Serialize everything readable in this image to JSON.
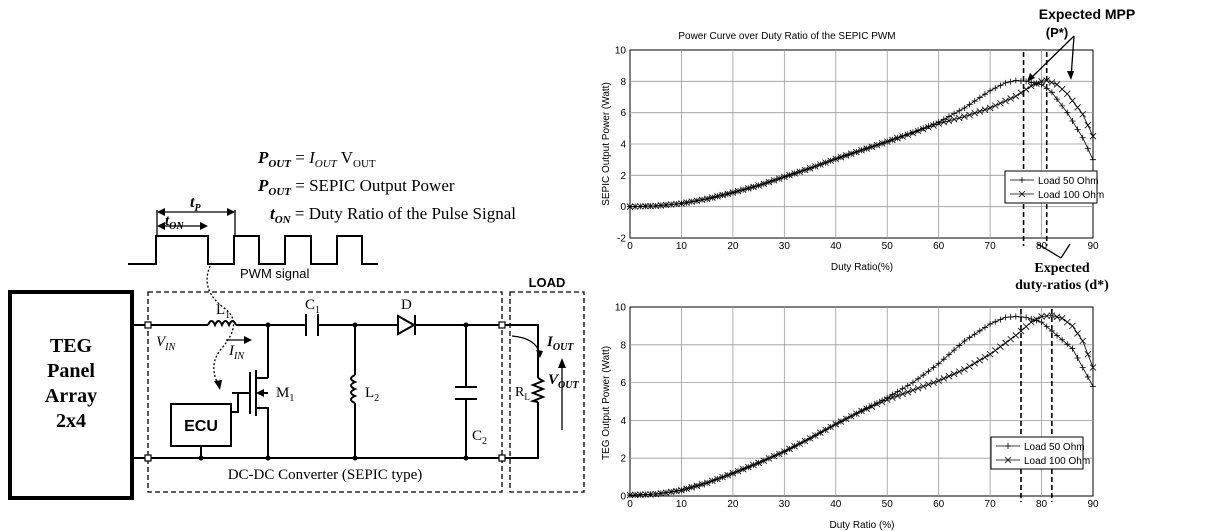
{
  "circuit": {
    "teg_label": [
      "TEG",
      "Panel",
      "Array",
      "2x4"
    ],
    "ecu_label": "ECU",
    "load_label": "LOAD",
    "converter_label": "DC-DC Converter (SEPIC type)",
    "pwm_label": "PWM signal",
    "tp_label": "t",
    "tp_sub": "P",
    "ton_label": "t",
    "ton_sub": "ON",
    "vin_label": "V",
    "vin_sub": "IN",
    "iin_label": "I",
    "iin_sub": "IN",
    "l1_label": "L",
    "l1_sub": "1",
    "c1_label": "C",
    "c1_sub": "1",
    "d_label": "D",
    "m1_label": "M",
    "m1_sub": "1",
    "l2_label": "L",
    "l2_sub": "2",
    "c2_label": "C",
    "c2_sub": "2",
    "rl_label": "R",
    "rl_sub": "L",
    "iout_label": "I",
    "iout_sub": "OUT",
    "vout_label": "V",
    "vout_sub": "OUT"
  },
  "equations": [
    {
      "sym": "P",
      "sub": "OUT",
      "rest_a": " = ",
      "i_sym": "I",
      "i_sub": "OUT",
      "rest_b": " V",
      "v_sub": "OUT"
    },
    {
      "sym": "P",
      "sub": "OUT",
      "rest": " = SEPIC Output Power"
    },
    {
      "sym": "t",
      "sub": "ON",
      "rest": " = Duty Ratio of the Pulse Signal"
    }
  ],
  "annotations": {
    "mpp_line1": "Expected MPP",
    "mpp_line2": "(P*)",
    "duty_line1": "Expected",
    "duty_line2": "duty-ratios (d*)"
  },
  "chart_data": [
    {
      "type": "line",
      "title": "Power Curve over Duty Ratio of the SEPIC PWM",
      "xlabel": "Duty Ratio(%)",
      "ylabel": "SEPIC Output Power (Watt)",
      "xlim": [
        0,
        90
      ],
      "ylim": [
        -2,
        10
      ],
      "xticks": [
        0,
        10,
        20,
        30,
        40,
        50,
        60,
        70,
        80,
        90
      ],
      "yticks": [
        -2,
        0,
        2,
        4,
        6,
        8,
        10
      ],
      "grid": true,
      "legend_position": "right",
      "series": [
        {
          "name": "Load 50 Ohm",
          "marker": "+",
          "x": [
            0,
            5,
            10,
            15,
            20,
            25,
            30,
            35,
            40,
            45,
            50,
            55,
            60,
            65,
            70,
            73,
            75,
            77,
            80,
            82,
            85,
            88,
            90
          ],
          "y": [
            0,
            0.05,
            0.2,
            0.5,
            0.9,
            1.35,
            1.9,
            2.45,
            3.05,
            3.6,
            4.15,
            4.75,
            5.4,
            6.3,
            7.4,
            7.9,
            8.05,
            8.0,
            7.8,
            7.3,
            6.0,
            4.4,
            3.0
          ]
        },
        {
          "name": "Load 100 Ohm",
          "marker": "x",
          "x": [
            0,
            5,
            10,
            15,
            20,
            25,
            30,
            35,
            40,
            45,
            50,
            55,
            60,
            65,
            70,
            75,
            78,
            80,
            81,
            83,
            85,
            88,
            90
          ],
          "y": [
            0,
            0.05,
            0.2,
            0.5,
            0.9,
            1.35,
            1.9,
            2.45,
            3.05,
            3.6,
            4.15,
            4.7,
            5.3,
            5.75,
            6.3,
            7.05,
            7.7,
            8.0,
            8.05,
            7.8,
            7.2,
            5.9,
            4.5
          ]
        }
      ],
      "markers": {
        "mpp_x": [
          76.5,
          81
        ]
      }
    },
    {
      "type": "line",
      "title": "",
      "xlabel": "Duty Ratio (%)",
      "ylabel": "TEG Output Power (Watt)",
      "xlim": [
        0,
        90
      ],
      "ylim": [
        0,
        10
      ],
      "xticks": [
        0,
        10,
        20,
        30,
        40,
        50,
        60,
        70,
        80,
        90
      ],
      "yticks": [
        0,
        2,
        4,
        6,
        8,
        10
      ],
      "grid": true,
      "legend_position": "right",
      "series": [
        {
          "name": "Load 50 Ohm",
          "marker": "+",
          "x": [
            0,
            5,
            10,
            15,
            20,
            25,
            30,
            35,
            40,
            45,
            50,
            55,
            60,
            65,
            70,
            73,
            75,
            77,
            80,
            83,
            86,
            90
          ],
          "y": [
            0.05,
            0.1,
            0.3,
            0.7,
            1.2,
            1.75,
            2.35,
            3.05,
            3.8,
            4.5,
            5.2,
            6.0,
            7.0,
            8.2,
            9.1,
            9.45,
            9.5,
            9.45,
            9.2,
            8.5,
            7.8,
            5.8
          ]
        },
        {
          "name": "Load 100 Ohm",
          "marker": "x",
          "x": [
            0,
            5,
            10,
            15,
            20,
            25,
            30,
            35,
            40,
            45,
            50,
            55,
            60,
            65,
            70,
            75,
            78,
            80,
            82,
            84,
            86,
            88,
            90
          ],
          "y": [
            0.05,
            0.1,
            0.3,
            0.7,
            1.2,
            1.75,
            2.35,
            3.05,
            3.8,
            4.5,
            5.1,
            5.6,
            6.1,
            6.7,
            7.5,
            8.5,
            9.2,
            9.5,
            9.55,
            9.4,
            9.0,
            8.2,
            6.8
          ]
        }
      ],
      "markers": {
        "mpp_x": [
          76,
          82
        ]
      }
    }
  ]
}
